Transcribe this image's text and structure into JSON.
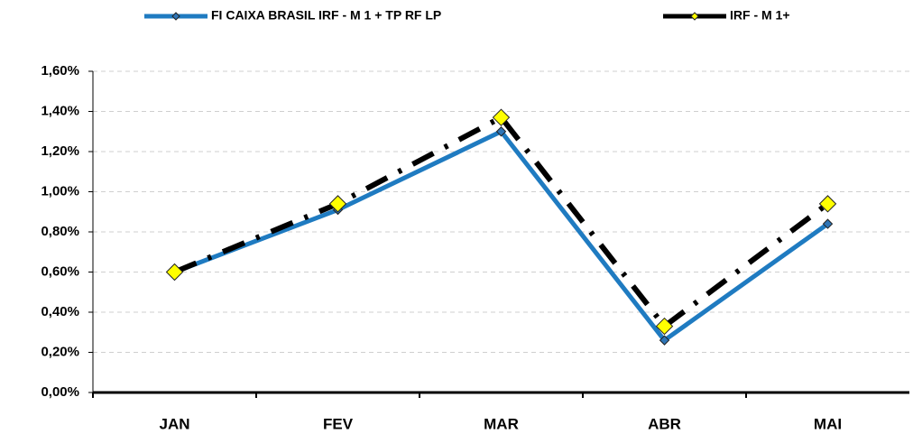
{
  "chart_data": {
    "type": "line",
    "categories": [
      "JAN",
      "FEV",
      "MAR",
      "ABR",
      "MAI"
    ],
    "series": [
      {
        "name": "FI CAIXA BRASIL IRF - M 1 + TP RF LP",
        "color": "#1f7bc1",
        "marker_color": "#2e75b6",
        "style": "solid",
        "values": [
          0.6,
          0.91,
          1.3,
          0.26,
          0.84
        ]
      },
      {
        "name": "IRF - M 1+",
        "color": "#000000",
        "marker_color": "#ffff00",
        "style": "dash-dot",
        "values": [
          0.6,
          0.94,
          1.37,
          0.33,
          0.94
        ]
      }
    ],
    "ylim": [
      0,
      1.6
    ],
    "yticks": [
      {
        "value": 0,
        "label": "0,00%"
      },
      {
        "value": 0.2,
        "label": "0,20%"
      },
      {
        "value": 0.4,
        "label": "0,40%"
      },
      {
        "value": 0.6,
        "label": "0,60%"
      },
      {
        "value": 0.8,
        "label": "0,80%"
      },
      {
        "value": 1.0,
        "label": "1,00%"
      },
      {
        "value": 1.2,
        "label": "1,20%"
      },
      {
        "value": 1.4,
        "label": "1,40%"
      },
      {
        "value": 1.6,
        "label": "1,60%"
      }
    ],
    "grid": true
  }
}
